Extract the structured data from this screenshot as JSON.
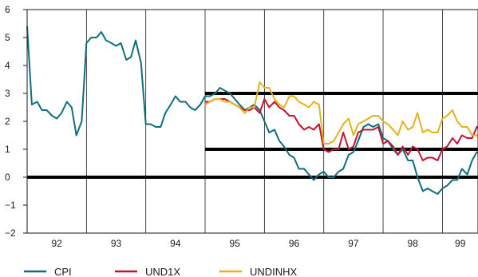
{
  "chart_data": {
    "type": "line",
    "title": "",
    "xlabel": "",
    "ylabel": "",
    "ylim": [
      -2,
      6
    ],
    "yticks": [
      6,
      5,
      4,
      3,
      2,
      1,
      0,
      -1,
      -2
    ],
    "ytick_labels": [
      "6",
      "5",
      "4",
      "3",
      "2",
      "1",
      "0",
      "−1",
      "−2"
    ],
    "x_year_labels": [
      "92",
      "93",
      "94",
      "95",
      "96",
      "97",
      "98",
      "99"
    ],
    "xlim": [
      1992.0,
      1999.6
    ],
    "grid": "vertical lines at year boundaries",
    "legend_position": "bottom",
    "reference_lines": [
      {
        "y": 0,
        "x_from": 1992.0,
        "x_to": 1999.6
      },
      {
        "y": 3,
        "x_from": 1995.0,
        "x_to": 1999.6
      },
      {
        "y": 1,
        "x_from": 1995.0,
        "x_to": 1999.6
      }
    ],
    "series": [
      {
        "name": "CPI",
        "color": "#0f6e7b",
        "points": [
          [
            1992.0,
            5.4
          ],
          [
            1992.08,
            2.6
          ],
          [
            1992.17,
            2.7
          ],
          [
            1992.25,
            2.4
          ],
          [
            1992.33,
            2.4
          ],
          [
            1992.42,
            2.2
          ],
          [
            1992.5,
            2.1
          ],
          [
            1992.58,
            2.3
          ],
          [
            1992.67,
            2.7
          ],
          [
            1992.75,
            2.5
          ],
          [
            1992.83,
            1.5
          ],
          [
            1992.92,
            2.0
          ],
          [
            1993.0,
            4.8
          ],
          [
            1993.08,
            5.0
          ],
          [
            1993.17,
            5.0
          ],
          [
            1993.25,
            5.2
          ],
          [
            1993.33,
            4.9
          ],
          [
            1993.42,
            4.8
          ],
          [
            1993.5,
            4.7
          ],
          [
            1993.58,
            4.8
          ],
          [
            1993.67,
            4.2
          ],
          [
            1993.75,
            4.3
          ],
          [
            1993.83,
            4.9
          ],
          [
            1993.92,
            4.1
          ],
          [
            1994.0,
            1.9
          ],
          [
            1994.08,
            1.9
          ],
          [
            1994.17,
            1.8
          ],
          [
            1994.25,
            1.8
          ],
          [
            1994.33,
            2.3
          ],
          [
            1994.42,
            2.6
          ],
          [
            1994.5,
            2.9
          ],
          [
            1994.58,
            2.7
          ],
          [
            1994.67,
            2.7
          ],
          [
            1994.75,
            2.5
          ],
          [
            1994.83,
            2.4
          ],
          [
            1994.92,
            2.6
          ],
          [
            1995.0,
            2.9
          ],
          [
            1995.08,
            2.9
          ],
          [
            1995.17,
            3.0
          ],
          [
            1995.25,
            3.2
          ],
          [
            1995.33,
            3.1
          ],
          [
            1995.42,
            3.0
          ],
          [
            1995.5,
            2.8
          ],
          [
            1995.58,
            2.6
          ],
          [
            1995.67,
            2.4
          ],
          [
            1995.75,
            2.5
          ],
          [
            1995.83,
            2.6
          ],
          [
            1995.92,
            2.4
          ],
          [
            1996.0,
            2.0
          ],
          [
            1996.08,
            1.6
          ],
          [
            1996.17,
            1.7
          ],
          [
            1996.25,
            1.3
          ],
          [
            1996.33,
            1.1
          ],
          [
            1996.42,
            0.8
          ],
          [
            1996.5,
            0.7
          ],
          [
            1996.58,
            0.3
          ],
          [
            1996.67,
            0.3
          ],
          [
            1996.75,
            0.1
          ],
          [
            1996.83,
            -0.1
          ],
          [
            1996.92,
            0.1
          ],
          [
            1997.0,
            0.2
          ],
          [
            1997.08,
            0.0
          ],
          [
            1997.17,
            0.0
          ],
          [
            1997.25,
            0.2
          ],
          [
            1997.33,
            0.3
          ],
          [
            1997.42,
            0.8
          ],
          [
            1997.5,
            0.9
          ],
          [
            1997.58,
            1.3
          ],
          [
            1997.67,
            1.8
          ],
          [
            1997.75,
            1.9
          ],
          [
            1997.83,
            1.8
          ],
          [
            1997.92,
            1.9
          ],
          [
            1998.0,
            1.4
          ],
          [
            1998.08,
            1.3
          ],
          [
            1998.17,
            1.0
          ],
          [
            1998.25,
            0.8
          ],
          [
            1998.33,
            1.0
          ],
          [
            1998.42,
            0.6
          ],
          [
            1998.5,
            0.6
          ],
          [
            1998.58,
            0.0
          ],
          [
            1998.67,
            -0.5
          ],
          [
            1998.75,
            -0.4
          ],
          [
            1998.83,
            -0.5
          ],
          [
            1998.92,
            -0.6
          ],
          [
            1999.0,
            -0.4
          ],
          [
            1999.08,
            -0.3
          ],
          [
            1999.17,
            -0.1
          ],
          [
            1999.25,
            -0.1
          ],
          [
            1999.33,
            0.3
          ],
          [
            1999.42,
            0.1
          ],
          [
            1999.5,
            0.6
          ],
          [
            1999.58,
            0.9
          ],
          [
            1999.67,
            0.8
          ],
          [
            1999.75,
            0.8
          ]
        ]
      },
      {
        "name": "UND1X",
        "color": "#c4132f",
        "points": [
          [
            1995.0,
            2.7
          ],
          [
            1995.08,
            2.7
          ],
          [
            1995.17,
            2.8
          ],
          [
            1995.25,
            2.8
          ],
          [
            1995.33,
            2.8
          ],
          [
            1995.42,
            2.7
          ],
          [
            1995.5,
            2.6
          ],
          [
            1995.58,
            2.5
          ],
          [
            1995.67,
            2.4
          ],
          [
            1995.75,
            2.4
          ],
          [
            1995.83,
            2.5
          ],
          [
            1995.92,
            2.3
          ],
          [
            1996.0,
            2.8
          ],
          [
            1996.08,
            2.5
          ],
          [
            1996.17,
            2.7
          ],
          [
            1996.25,
            2.5
          ],
          [
            1996.33,
            2.4
          ],
          [
            1996.42,
            2.2
          ],
          [
            1996.5,
            2.2
          ],
          [
            1996.58,
            1.9
          ],
          [
            1996.67,
            1.7
          ],
          [
            1996.75,
            1.8
          ],
          [
            1996.83,
            1.7
          ],
          [
            1996.92,
            1.9
          ],
          [
            1997.0,
            1.0
          ],
          [
            1997.08,
            0.9
          ],
          [
            1997.17,
            1.0
          ],
          [
            1997.25,
            1.0
          ],
          [
            1997.33,
            1.6
          ],
          [
            1997.42,
            1.0
          ],
          [
            1997.5,
            1.1
          ],
          [
            1997.58,
            1.6
          ],
          [
            1997.67,
            1.7
          ],
          [
            1997.75,
            1.7
          ],
          [
            1997.83,
            1.7
          ],
          [
            1997.92,
            1.8
          ],
          [
            1998.0,
            1.2
          ],
          [
            1998.08,
            1.3
          ],
          [
            1998.17,
            1.1
          ],
          [
            1998.25,
            0.8
          ],
          [
            1998.33,
            1.1
          ],
          [
            1998.42,
            0.8
          ],
          [
            1998.5,
            1.1
          ],
          [
            1998.58,
            1.0
          ],
          [
            1998.67,
            0.6
          ],
          [
            1998.75,
            0.7
          ],
          [
            1998.83,
            0.7
          ],
          [
            1998.92,
            0.6
          ],
          [
            1999.0,
            1.0
          ],
          [
            1999.08,
            1.1
          ],
          [
            1999.17,
            1.4
          ],
          [
            1999.25,
            1.2
          ],
          [
            1999.33,
            1.5
          ],
          [
            1999.42,
            1.4
          ],
          [
            1999.5,
            1.4
          ],
          [
            1999.58,
            1.8
          ],
          [
            1999.67,
            1.6
          ],
          [
            1999.75,
            1.7
          ]
        ]
      },
      {
        "name": "UNDINHX",
        "color": "#e6b21c",
        "points": [
          [
            1995.0,
            2.6
          ],
          [
            1995.08,
            2.7
          ],
          [
            1995.17,
            2.8
          ],
          [
            1995.25,
            2.8
          ],
          [
            1995.33,
            2.7
          ],
          [
            1995.42,
            2.7
          ],
          [
            1995.5,
            2.6
          ],
          [
            1995.58,
            2.5
          ],
          [
            1995.67,
            2.3
          ],
          [
            1995.75,
            2.5
          ],
          [
            1995.83,
            2.5
          ],
          [
            1995.92,
            3.4
          ],
          [
            1996.0,
            3.2
          ],
          [
            1996.08,
            3.2
          ],
          [
            1996.17,
            2.8
          ],
          [
            1996.25,
            2.6
          ],
          [
            1996.33,
            2.5
          ],
          [
            1996.42,
            2.9
          ],
          [
            1996.5,
            2.9
          ],
          [
            1996.58,
            2.7
          ],
          [
            1996.67,
            2.6
          ],
          [
            1996.75,
            2.5
          ],
          [
            1996.83,
            2.7
          ],
          [
            1996.92,
            2.6
          ],
          [
            1997.0,
            1.2
          ],
          [
            1997.08,
            1.2
          ],
          [
            1997.17,
            1.3
          ],
          [
            1997.25,
            1.6
          ],
          [
            1997.33,
            1.9
          ],
          [
            1997.42,
            2.1
          ],
          [
            1997.5,
            1.5
          ],
          [
            1997.58,
            1.9
          ],
          [
            1997.67,
            2.0
          ],
          [
            1997.75,
            2.1
          ],
          [
            1997.83,
            2.2
          ],
          [
            1997.92,
            2.2
          ],
          [
            1998.0,
            2.0
          ],
          [
            1998.08,
            1.9
          ],
          [
            1998.17,
            1.7
          ],
          [
            1998.25,
            1.5
          ],
          [
            1998.33,
            2.0
          ],
          [
            1998.42,
            1.7
          ],
          [
            1998.5,
            1.8
          ],
          [
            1998.58,
            2.3
          ],
          [
            1998.67,
            1.6
          ],
          [
            1998.75,
            1.7
          ],
          [
            1998.83,
            1.6
          ],
          [
            1998.92,
            1.6
          ],
          [
            1999.0,
            2.1
          ],
          [
            1999.08,
            2.2
          ],
          [
            1999.17,
            2.4
          ],
          [
            1999.25,
            2.0
          ],
          [
            1999.33,
            1.8
          ],
          [
            1999.42,
            1.8
          ],
          [
            1999.5,
            1.5
          ],
          [
            1999.58,
            1.5
          ],
          [
            1999.67,
            1.4
          ],
          [
            1999.75,
            1.4
          ]
        ]
      }
    ]
  }
}
